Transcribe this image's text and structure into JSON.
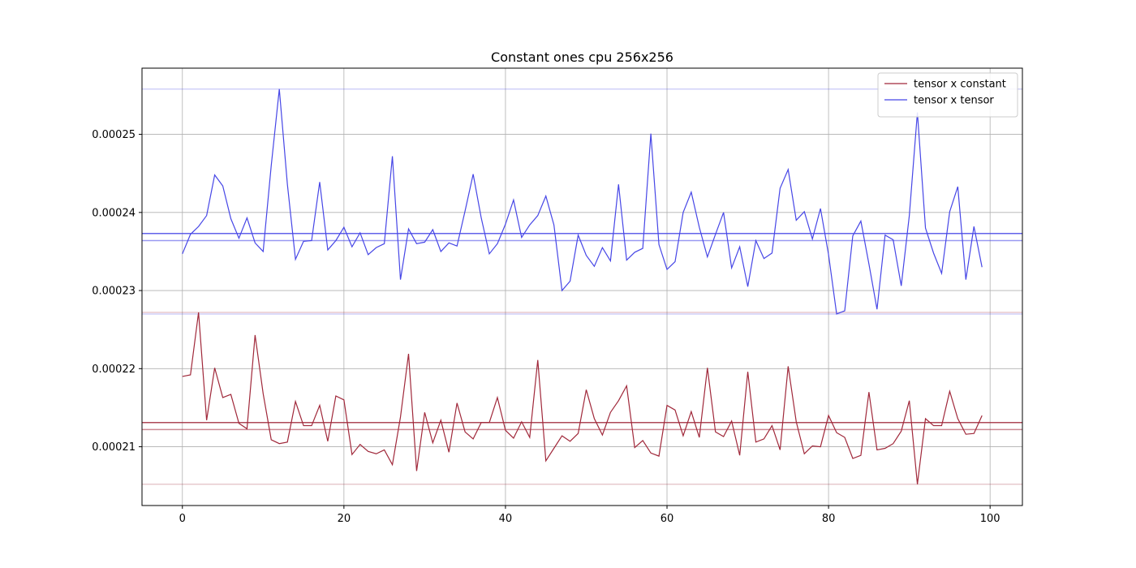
{
  "chart_data": {
    "type": "line",
    "title": "Constant ones cpu 256x256",
    "xlabel": "",
    "ylabel": "",
    "xlim": [
      -5,
      104
    ],
    "ylim": [
      0.000202475,
      0.000258475
    ],
    "xticks": [
      0,
      20,
      40,
      60,
      80,
      100
    ],
    "xtick_labels": [
      "0",
      "20",
      "40",
      "60",
      "80",
      "100"
    ],
    "yticks": [
      0.00021,
      0.00022,
      0.00023,
      0.00024,
      0.00025
    ],
    "ytick_labels": [
      "0.00021",
      "0.00022",
      "0.00023",
      "0.00024",
      "0.00025"
    ],
    "grid": true,
    "legend_position": "top-right",
    "x": [
      0,
      1,
      2,
      3,
      4,
      5,
      6,
      7,
      8,
      9,
      10,
      11,
      12,
      13,
      14,
      15,
      16,
      17,
      18,
      19,
      20,
      21,
      22,
      23,
      24,
      25,
      26,
      27,
      28,
      29,
      30,
      31,
      32,
      33,
      34,
      35,
      36,
      37,
      38,
      39,
      40,
      41,
      42,
      43,
      44,
      45,
      46,
      47,
      48,
      49,
      50,
      51,
      52,
      53,
      54,
      55,
      56,
      57,
      58,
      59,
      60,
      61,
      62,
      63,
      64,
      65,
      66,
      67,
      68,
      69,
      70,
      71,
      72,
      73,
      74,
      75,
      76,
      77,
      78,
      79,
      80,
      81,
      82,
      83,
      84,
      85,
      86,
      87,
      88,
      89,
      90,
      91,
      92,
      93,
      94,
      95,
      96,
      97,
      98,
      99
    ],
    "series": [
      {
        "name": "tensor x constant",
        "color": "#a0283a",
        "values": [
          0.000219,
          0.0002192,
          0.0002272,
          0.0002134,
          0.0002201,
          0.0002163,
          0.0002167,
          0.000213,
          0.0002123,
          0.0002243,
          0.0002168,
          0.0002109,
          0.0002104,
          0.0002106,
          0.0002158,
          0.0002127,
          0.0002127,
          0.0002153,
          0.0002107,
          0.0002165,
          0.000216,
          0.000209,
          0.0002103,
          0.0002094,
          0.0002091,
          0.0002096,
          0.0002077,
          0.0002138,
          0.0002219,
          0.0002069,
          0.0002144,
          0.0002105,
          0.0002134,
          0.0002093,
          0.0002156,
          0.0002119,
          0.000211,
          0.0002131,
          0.0002131,
          0.0002163,
          0.0002121,
          0.0002111,
          0.0002132,
          0.0002112,
          0.0002211,
          0.0002082,
          0.0002098,
          0.0002114,
          0.0002107,
          0.0002117,
          0.0002173,
          0.0002136,
          0.0002115,
          0.0002144,
          0.0002159,
          0.0002178,
          0.0002099,
          0.0002108,
          0.0002092,
          0.0002088,
          0.0002153,
          0.0002147,
          0.0002114,
          0.0002145,
          0.0002112,
          0.0002201,
          0.0002119,
          0.0002113,
          0.0002133,
          0.0002089,
          0.0002196,
          0.0002106,
          0.000211,
          0.0002127,
          0.0002096,
          0.0002203,
          0.0002132,
          0.0002091,
          0.0002101,
          0.00021,
          0.000214,
          0.0002118,
          0.0002112,
          0.0002085,
          0.0002089,
          0.000217,
          0.0002096,
          0.0002098,
          0.0002104,
          0.000212,
          0.0002159,
          0.0002052,
          0.0002136,
          0.0002127,
          0.0002127,
          0.0002171,
          0.0002136,
          0.0002116,
          0.0002117,
          0.000214
        ],
        "mean": 0.0002131,
        "median": 0.0002122,
        "max": 0.0002272,
        "min": 0.0002052
      },
      {
        "name": "tensor x tensor",
        "color": "#4646e6",
        "values": [
          0.0002347,
          0.0002372,
          0.0002382,
          0.0002396,
          0.0002448,
          0.0002434,
          0.0002392,
          0.0002367,
          0.0002393,
          0.0002361,
          0.000235,
          0.000246,
          0.0002558,
          0.0002436,
          0.000234,
          0.0002363,
          0.0002364,
          0.0002439,
          0.0002352,
          0.0002364,
          0.0002381,
          0.0002356,
          0.0002374,
          0.0002346,
          0.0002355,
          0.000236,
          0.0002472,
          0.0002314,
          0.0002379,
          0.000236,
          0.0002362,
          0.0002378,
          0.000235,
          0.0002361,
          0.0002357,
          0.0002402,
          0.0002449,
          0.0002393,
          0.0002347,
          0.000236,
          0.0002385,
          0.0002416,
          0.0002368,
          0.0002384,
          0.0002396,
          0.0002421,
          0.0002384,
          0.00023,
          0.0002312,
          0.0002371,
          0.0002345,
          0.0002331,
          0.0002355,
          0.0002338,
          0.0002436,
          0.0002339,
          0.0002349,
          0.0002354,
          0.0002501,
          0.0002359,
          0.0002327,
          0.0002337,
          0.00024,
          0.0002426,
          0.0002381,
          0.0002343,
          0.0002372,
          0.00024,
          0.0002329,
          0.0002356,
          0.0002305,
          0.0002364,
          0.0002341,
          0.0002348,
          0.0002431,
          0.0002455,
          0.000239,
          0.0002401,
          0.0002366,
          0.0002405,
          0.0002346,
          0.000227,
          0.0002274,
          0.000237,
          0.0002389,
          0.0002334,
          0.0002276,
          0.0002371,
          0.0002365,
          0.0002306,
          0.0002396,
          0.0002528,
          0.000238,
          0.0002348,
          0.0002322,
          0.0002401,
          0.0002433,
          0.0002314,
          0.0002382,
          0.000233
        ],
        "mean": 0.0002373,
        "median": 0.0002364,
        "max": 0.0002558,
        "min": 0.000227
      }
    ]
  }
}
